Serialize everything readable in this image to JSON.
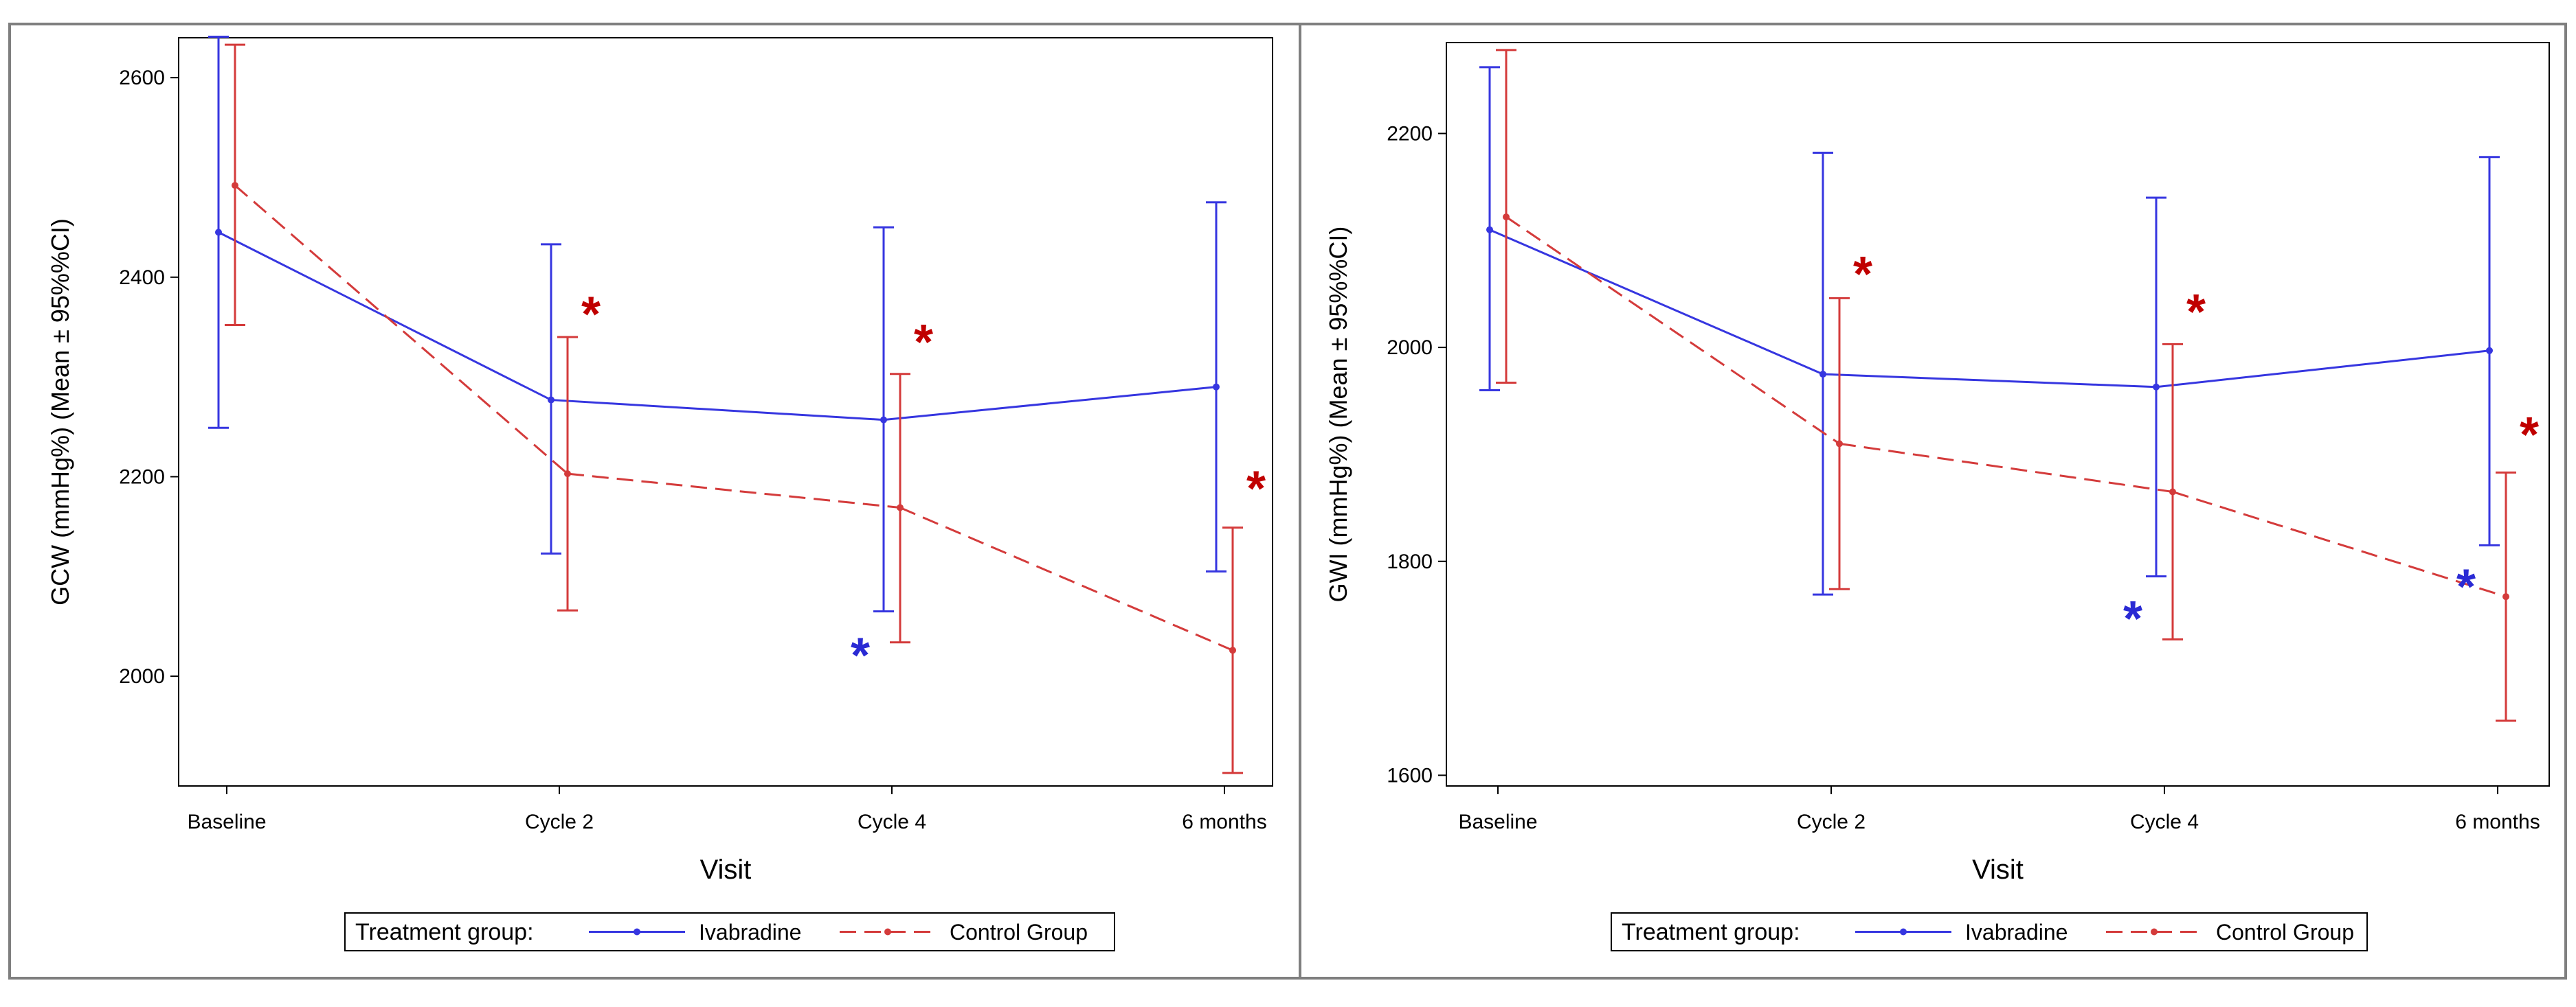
{
  "legend": {
    "title": "Treatment group:",
    "entries": [
      "Ivabradine",
      "Control Group"
    ]
  },
  "colors": {
    "ivabradine": "#3636e0",
    "control": "#d43b3b",
    "star_red": "#c00000",
    "star_blue": "#2a2ad4",
    "axis": "#000000",
    "frame": "#7f7f7f"
  },
  "chart_data": [
    {
      "type": "line",
      "title": "",
      "xlabel": "Visit",
      "ylabel": "GCW (mmHg%) (Mean ± 95%%CI)",
      "categories": [
        "Baseline",
        "Cycle 2",
        "Cycle 4",
        "6 months"
      ],
      "ylim": [
        1890,
        2640
      ],
      "yticks": [
        2000,
        2200,
        2400,
        2600
      ],
      "grid": false,
      "series": [
        {
          "name": "Ivabradine",
          "style": "solid",
          "values": [
            2445,
            2277,
            2257,
            2290
          ],
          "lower": [
            2249,
            2123,
            2065,
            2105
          ],
          "upper": [
            2641,
            2433,
            2450,
            2475
          ]
        },
        {
          "name": "Control Group",
          "style": "dashed",
          "values": [
            2492,
            2203,
            2169,
            2026
          ],
          "lower": [
            2352,
            2066,
            2034,
            1903
          ],
          "upper": [
            2633,
            2340,
            2303,
            2149
          ]
        }
      ],
      "annotations": [
        {
          "text": "*",
          "category": "Cycle 2",
          "value": 2370,
          "series": "Control Group"
        },
        {
          "text": "*",
          "category": "Cycle 4",
          "value": 2342,
          "series": "Control Group"
        },
        {
          "text": "*",
          "category": "6 months",
          "value": 2195,
          "series": "Control Group"
        },
        {
          "text": "*",
          "category": "Cycle 4",
          "value": 2028,
          "series": "Ivabradine"
        }
      ]
    },
    {
      "type": "line",
      "title": "",
      "xlabel": "Visit",
      "ylabel": "GWI (mmHg%) (Mean ± 95%%CI)",
      "categories": [
        "Baseline",
        "Cycle 2",
        "Cycle 4",
        "6 months"
      ],
      "ylim": [
        1590,
        2285
      ],
      "yticks": [
        1600,
        1800,
        2000,
        2200
      ],
      "grid": false,
      "series": [
        {
          "name": "Ivabradine",
          "style": "solid",
          "values": [
            2110,
            1975,
            1963,
            1997
          ],
          "lower": [
            1960,
            1769,
            1786,
            1815
          ],
          "upper": [
            2262,
            2182,
            2140,
            2178
          ]
        },
        {
          "name": "Control Group",
          "style": "dashed",
          "values": [
            2122,
            1910,
            1865,
            1767
          ],
          "lower": [
            1967,
            1774,
            1727,
            1651
          ],
          "upper": [
            2278,
            2046,
            2003,
            1883
          ]
        }
      ],
      "annotations": [
        {
          "text": "*",
          "category": "Cycle 2",
          "value": 2075,
          "series": "Control Group"
        },
        {
          "text": "*",
          "category": "Cycle 4",
          "value": 2040,
          "series": "Control Group"
        },
        {
          "text": "*",
          "category": "6 months",
          "value": 1925,
          "series": "Control Group"
        },
        {
          "text": "*",
          "category": "6 months",
          "value": 1783,
          "series": "Ivabradine"
        },
        {
          "text": "*",
          "category": "Cycle 4",
          "value": 1753,
          "series": "Ivabradine"
        }
      ]
    }
  ]
}
